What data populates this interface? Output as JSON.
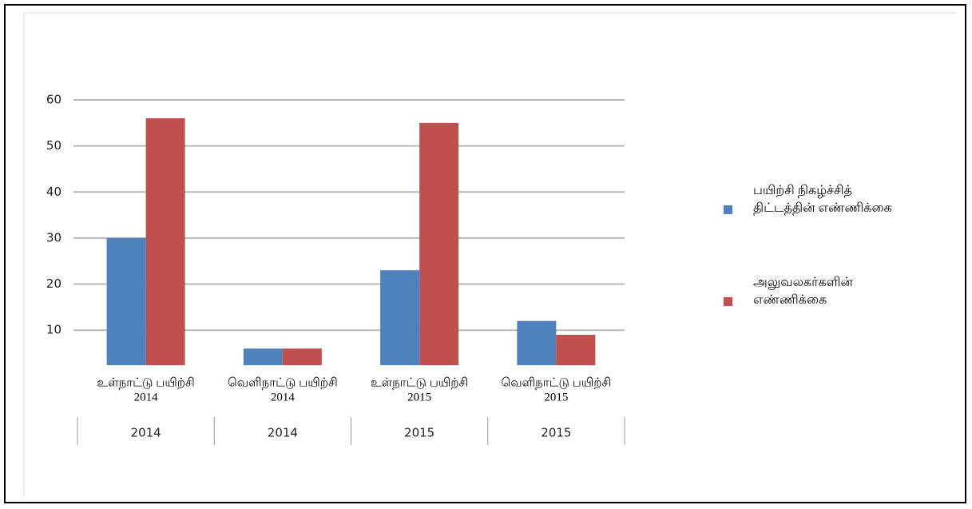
{
  "chart_data": {
    "type": "bar",
    "categories": [
      [
        "உள்நாட்டு பயிற்சி",
        "2014"
      ],
      [
        "வெளிநாட்டு பயிற்சி",
        "2014"
      ],
      [
        "உள்நாட்டு பயிற்சி",
        "2015"
      ],
      [
        "வெளிநாட்டு பயிற்சி",
        "2015"
      ]
    ],
    "category_groups": [
      "2014",
      "2014",
      "2015",
      "2015"
    ],
    "series": [
      {
        "name": "பயிற்சி நிகழ்ச்சித் திட்டத்தின் எண்ணிக்கை",
        "color": "#4f81bd",
        "values": [
          30,
          6,
          23,
          12
        ]
      },
      {
        "name": "அலுவலகர்களின் எண்ணிக்கை",
        "color": "#c0504d",
        "values": [
          56,
          6,
          55,
          9
        ]
      }
    ],
    "ylim": [
      2.4,
      60
    ],
    "yticks": [
      10,
      20,
      30,
      40,
      50,
      60
    ],
    "grid": true,
    "legend": "right"
  }
}
